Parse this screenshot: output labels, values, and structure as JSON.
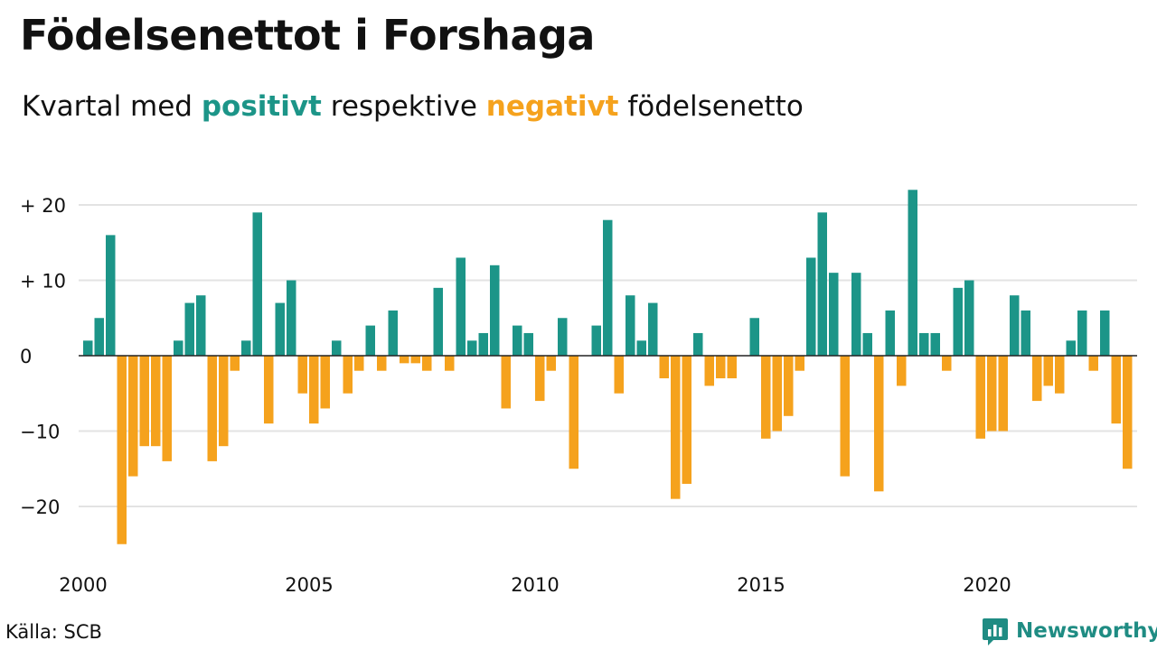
{
  "title": "Födelsenettot i Forshaga",
  "subtitle": {
    "prefix": "Kvartal med",
    "positive": "positivt",
    "middle": "respektive",
    "negative": "negativt",
    "suffix": "födelsenetto"
  },
  "source": "Källa: SCB",
  "brand": {
    "name": "Newsworthy",
    "icon": "newsworthy-logo-icon"
  },
  "colors": {
    "positive": "#1c9588",
    "negative": "#f5a21d",
    "grid": "#e3e3e3",
    "text": "#111111"
  },
  "chart_data": {
    "type": "bar",
    "x_start": 2000,
    "periods_per_year": 4,
    "ylim": [
      -27,
      24
    ],
    "grid": true,
    "y_ticks": [
      {
        "value": 20,
        "label": "+ 20"
      },
      {
        "value": 10,
        "label": "+ 10"
      },
      {
        "value": 0,
        "label": "0"
      },
      {
        "value": -10,
        "label": "−10"
      },
      {
        "value": -20,
        "label": "−20"
      }
    ],
    "x_ticks": [
      {
        "value": 2000,
        "label": "2000"
      },
      {
        "value": 2005,
        "label": "2005"
      },
      {
        "value": 2010,
        "label": "2010"
      },
      {
        "value": 2015,
        "label": "2015"
      },
      {
        "value": 2020,
        "label": "2020"
      }
    ],
    "values": [
      2,
      5,
      16,
      -25,
      -16,
      -12,
      -12,
      -14,
      2,
      7,
      8,
      -14,
      -12,
      -2,
      2,
      19,
      -9,
      7,
      10,
      -5,
      -9,
      -7,
      2,
      -5,
      -2,
      4,
      -2,
      6,
      -1,
      -1,
      -2,
      9,
      -2,
      13,
      2,
      3,
      12,
      -7,
      4,
      3,
      -6,
      -2,
      5,
      -15,
      0,
      4,
      18,
      -5,
      8,
      2,
      7,
      -3,
      -19,
      -17,
      3,
      -4,
      -3,
      -3,
      0,
      5,
      -11,
      -10,
      -8,
      -2,
      13,
      19,
      11,
      -16,
      11,
      3,
      -18,
      6,
      -4,
      22,
      3,
      3,
      -2,
      9,
      10,
      -11,
      -10,
      -10,
      8,
      6,
      -6,
      -4,
      -5,
      2,
      6,
      -2,
      6,
      -9,
      -15
    ]
  }
}
